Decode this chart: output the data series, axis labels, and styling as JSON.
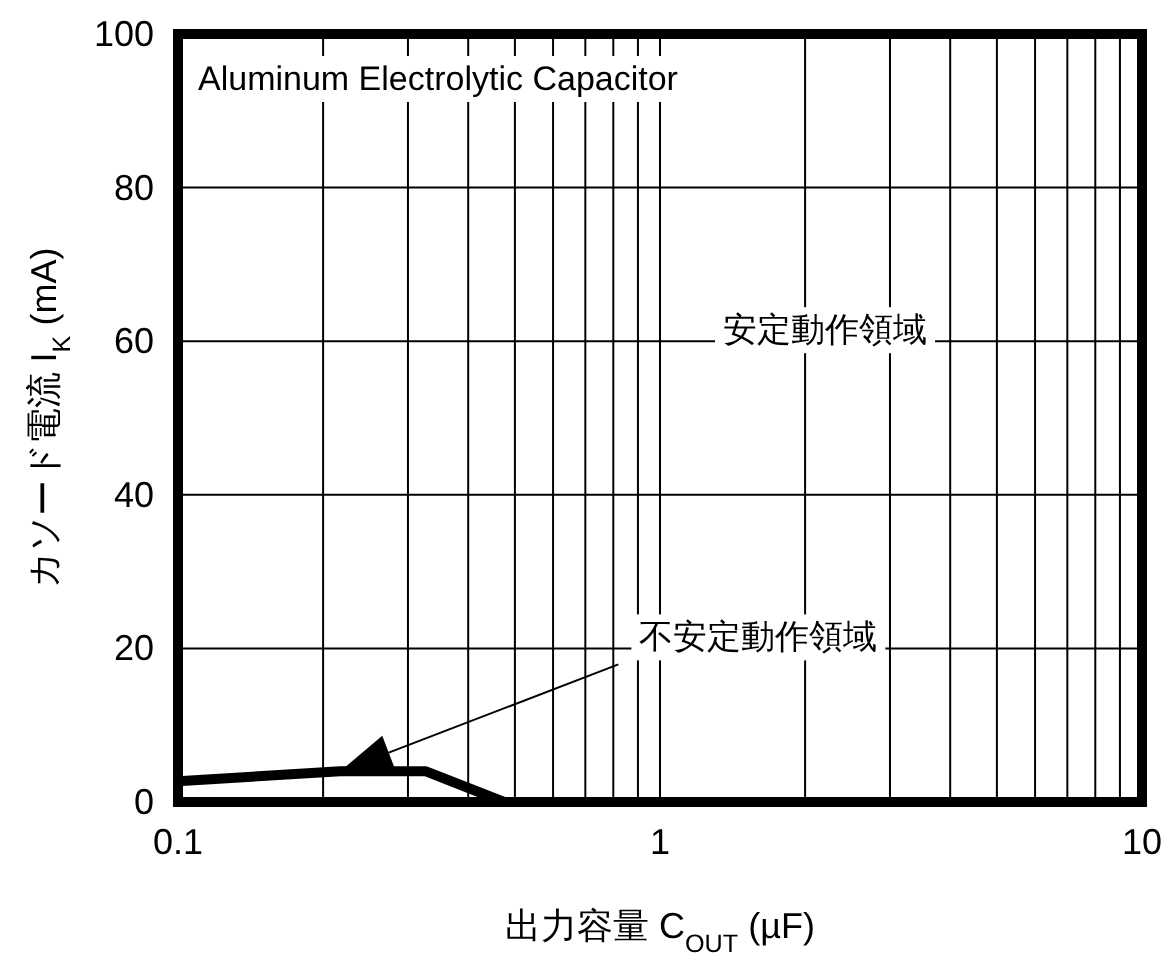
{
  "chart_data": {
    "type": "line",
    "xlabel": "出力容量 C$_{OUT}$ (µF)",
    "ylabel": "カソード電流 I$_{K}$ (mA)",
    "annotations": [
      "Aluminum Electrolytic Capacitor",
      "安定動作領域",
      "不安定動作領域"
    ],
    "series": [
      {
        "color": "#000000",
        "x": [
          0.1,
          0.217,
          0.327,
          0.475,
          10
        ],
        "values": [
          2.7,
          4,
          4,
          0,
          0
        ]
      }
    ],
    "log": "x",
    "xlim": [
      0.1,
      10
    ],
    "ylim": [
      0,
      100
    ],
    "xticks": [
      0.1,
      {
        "value": 0.2,
        "label": null
      },
      {
        "value": 0.3,
        "label": null
      },
      {
        "value": 0.4,
        "label": null
      },
      {
        "value": 0.5,
        "label": null
      },
      {
        "value": 0.6,
        "label": null
      },
      {
        "value": 0.7,
        "label": null
      },
      {
        "value": 0.8,
        "label": null
      },
      {
        "value": 0.9,
        "label": null
      },
      1,
      {
        "value": 2,
        "label": null
      },
      {
        "value": 3,
        "label": null
      },
      {
        "value": 4,
        "label": null
      },
      {
        "value": 5,
        "label": null
      },
      {
        "value": 6,
        "label": null
      },
      {
        "value": 7,
        "label": null
      },
      {
        "value": 8,
        "label": null
      },
      {
        "value": 9,
        "label": null
      },
      10
    ],
    "yticks": [
      0,
      20,
      40,
      60,
      80,
      100
    ],
    "grid": "xy",
    "marker": "none",
    "line_style": "solid"
  }
}
